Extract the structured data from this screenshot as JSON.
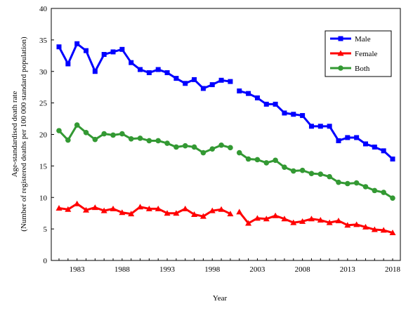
{
  "chart_data": {
    "type": "line",
    "title": "",
    "xlabel": "Year",
    "ylabel_lines": [
      "Age-standardised death rate",
      "(Number of registered deaths per 100 000 standard population)"
    ],
    "xlim": [
      1981,
      2018
    ],
    "ylim": [
      0,
      40
    ],
    "x_ticks": [
      1983,
      1988,
      1993,
      1998,
      2003,
      2008,
      2013,
      2018
    ],
    "y_ticks": [
      0,
      5,
      10,
      15,
      20,
      25,
      30,
      35,
      40
    ],
    "grid": false,
    "legend_position": "top-right",
    "gaps": [
      [
        2000,
        2001
      ]
    ],
    "x": [
      1981,
      1982,
      1983,
      1984,
      1985,
      1986,
      1987,
      1988,
      1989,
      1990,
      1991,
      1992,
      1993,
      1994,
      1995,
      1996,
      1997,
      1998,
      1999,
      2000,
      2001,
      2002,
      2003,
      2004,
      2005,
      2006,
      2007,
      2008,
      2009,
      2010,
      2011,
      2012,
      2013,
      2014,
      2015,
      2016,
      2017,
      2018
    ],
    "series": [
      {
        "name": "Male",
        "color": "#0000FF",
        "marker": "square",
        "values": [
          33.9,
          31.2,
          34.4,
          33.3,
          30.0,
          32.7,
          33.1,
          33.5,
          31.4,
          30.3,
          29.8,
          30.3,
          29.8,
          28.9,
          28.1,
          28.7,
          27.3,
          27.9,
          28.6,
          28.4,
          26.9,
          26.5,
          25.8,
          24.8,
          24.8,
          23.4,
          23.2,
          23.0,
          21.3,
          21.3,
          21.3,
          19.0,
          19.5,
          19.5,
          18.5,
          18.0,
          17.4,
          16.1
        ]
      },
      {
        "name": "Female",
        "color": "#FF0000",
        "marker": "triangle",
        "values": [
          8.3,
          8.1,
          9.0,
          8.0,
          8.4,
          7.9,
          8.2,
          7.6,
          7.4,
          8.5,
          8.2,
          8.2,
          7.5,
          7.5,
          8.2,
          7.3,
          7.0,
          7.9,
          8.1,
          7.4,
          7.7,
          5.9,
          6.7,
          6.6,
          7.1,
          6.6,
          6.0,
          6.2,
          6.6,
          6.4,
          6.0,
          6.3,
          5.6,
          5.7,
          5.3,
          4.9,
          4.8,
          4.4
        ]
      },
      {
        "name": "Both",
        "color": "#339933",
        "marker": "circle",
        "values": [
          20.6,
          19.1,
          21.5,
          20.3,
          19.2,
          20.1,
          19.9,
          20.1,
          19.3,
          19.4,
          19.0,
          19.0,
          18.6,
          18.0,
          18.2,
          18.0,
          17.1,
          17.7,
          18.3,
          17.9,
          17.1,
          16.1,
          16.0,
          15.5,
          15.9,
          14.8,
          14.2,
          14.3,
          13.8,
          13.7,
          13.3,
          12.4,
          12.2,
          12.3,
          11.7,
          11.1,
          10.8,
          9.9
        ]
      }
    ]
  }
}
